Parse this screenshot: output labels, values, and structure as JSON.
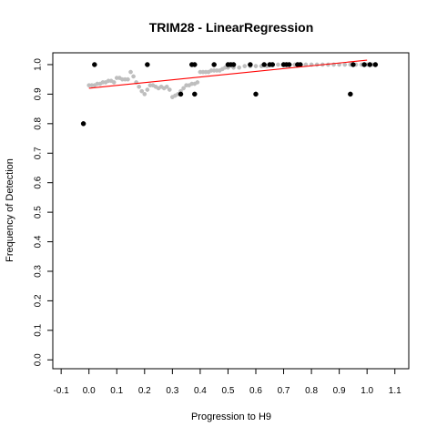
{
  "chart_data": {
    "type": "scatter",
    "title": "TRIM28 - LinearRegression",
    "xlabel": "Progression to H9",
    "ylabel": "Frequency of Detection",
    "xlim": [
      -0.13,
      1.15
    ],
    "ylim": [
      -0.03,
      1.04
    ],
    "x_ticks": [
      -0.1,
      0.0,
      0.1,
      0.2,
      0.3,
      0.4,
      0.5,
      0.6,
      0.7,
      0.8,
      0.9,
      1.0,
      1.1
    ],
    "x_tick_labels": [
      "-0.1",
      "0.0",
      "0.1",
      "0.2",
      "0.3",
      "0.4",
      "0.5",
      "0.6",
      "0.7",
      "0.8",
      "0.9",
      "1.0",
      "1.1"
    ],
    "y_ticks": [
      0.0,
      0.1,
      0.2,
      0.3,
      0.4,
      0.5,
      0.6,
      0.7,
      0.8,
      0.9,
      1.0
    ],
    "y_tick_labels": [
      "0.0",
      "0.1",
      "0.2",
      "0.3",
      "0.4",
      "0.5",
      "0.6",
      "0.7",
      "0.8",
      "0.9",
      "1.0"
    ],
    "grid": false,
    "legend": "none",
    "series": [
      {
        "type": "scatter",
        "color": "#bebebe",
        "x": [
          0.0,
          0.01,
          0.02,
          0.03,
          0.04,
          0.05,
          0.06,
          0.07,
          0.08,
          0.09,
          0.1,
          0.11,
          0.12,
          0.13,
          0.14,
          0.15,
          0.16,
          0.17,
          0.18,
          0.19,
          0.2,
          0.21,
          0.22,
          0.23,
          0.24,
          0.25,
          0.26,
          0.27,
          0.28,
          0.29,
          0.3,
          0.31,
          0.32,
          0.33,
          0.34,
          0.35,
          0.36,
          0.37,
          0.38,
          0.39,
          0.4,
          0.41,
          0.42,
          0.43,
          0.44,
          0.45,
          0.46,
          0.47,
          0.48,
          0.49,
          0.5,
          0.52,
          0.54,
          0.56,
          0.58,
          0.6,
          0.62,
          0.64,
          0.66,
          0.68,
          0.7,
          0.72,
          0.74,
          0.76,
          0.78,
          0.8,
          0.82,
          0.84,
          0.86,
          0.88,
          0.9,
          0.92,
          0.94,
          0.96,
          0.98,
          1.0,
          1.02
        ],
        "y": [
          0.93,
          0.93,
          0.93,
          0.935,
          0.935,
          0.94,
          0.94,
          0.945,
          0.945,
          0.94,
          0.955,
          0.955,
          0.95,
          0.95,
          0.95,
          0.975,
          0.96,
          0.94,
          0.925,
          0.91,
          0.9,
          0.915,
          0.93,
          0.93,
          0.925,
          0.92,
          0.925,
          0.92,
          0.925,
          0.915,
          0.89,
          0.895,
          0.9,
          0.91,
          0.92,
          0.93,
          0.93,
          0.935,
          0.935,
          0.94,
          0.975,
          0.975,
          0.975,
          0.975,
          0.98,
          0.98,
          0.98,
          0.98,
          0.985,
          0.99,
          0.99,
          0.99,
          0.99,
          0.995,
          0.995,
          0.995,
          0.995,
          0.995,
          1.0,
          1.0,
          1.0,
          1.0,
          1.0,
          1.0,
          1.0,
          1.0,
          1.0,
          1.0,
          1.0,
          1.0,
          1.0,
          1.0,
          1.0,
          1.0,
          1.0,
          1.0,
          1.0
        ]
      },
      {
        "type": "scatter",
        "color": "#000000",
        "x": [
          -0.02,
          0.02,
          0.21,
          0.33,
          0.37,
          0.38,
          0.38,
          0.45,
          0.5,
          0.51,
          0.52,
          0.58,
          0.6,
          0.63,
          0.65,
          0.66,
          0.7,
          0.71,
          0.72,
          0.75,
          0.76,
          0.94,
          0.95,
          0.99,
          1.01,
          1.03
        ],
        "y": [
          0.8,
          1.0,
          1.0,
          0.9,
          1.0,
          1.0,
          0.9,
          1.0,
          1.0,
          1.0,
          1.0,
          1.0,
          0.9,
          1.0,
          1.0,
          1.0,
          1.0,
          1.0,
          1.0,
          1.0,
          1.0,
          0.9,
          1.0,
          1.0,
          1.0,
          1.0
        ]
      },
      {
        "type": "line",
        "color": "#ff0000",
        "x": [
          0.0,
          1.0
        ],
        "y": [
          0.92,
          1.015
        ]
      }
    ]
  }
}
